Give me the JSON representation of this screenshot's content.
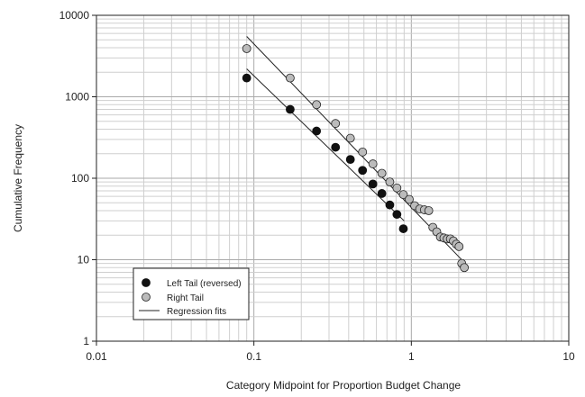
{
  "chart_data": {
    "type": "scatter",
    "title": "",
    "xlabel": "Category Midpoint for Proportion Budget Change",
    "ylabel": "Cumulative Frequency",
    "x_scale": "log",
    "y_scale": "log",
    "xlim": [
      0.01,
      10
    ],
    "ylim": [
      1,
      10000
    ],
    "x_ticks": [
      "0.01",
      "0.1",
      "1",
      "10"
    ],
    "y_ticks": [
      "1",
      "10",
      "100",
      "1000",
      "10000"
    ],
    "grid": true,
    "legend_position": "bottom-left",
    "series": [
      {
        "name": "Left Tail (reversed)",
        "color": "#111111",
        "points": [
          [
            0.09,
            1700
          ],
          [
            0.17,
            700
          ],
          [
            0.25,
            380
          ],
          [
            0.33,
            240
          ],
          [
            0.41,
            170
          ],
          [
            0.49,
            125
          ],
          [
            0.57,
            85
          ],
          [
            0.65,
            65
          ],
          [
            0.73,
            47
          ],
          [
            0.81,
            36
          ],
          [
            0.89,
            24
          ]
        ]
      },
      {
        "name": "Right Tail",
        "color": "#bbbbbb",
        "points": [
          [
            0.09,
            3900
          ],
          [
            0.17,
            1700
          ],
          [
            0.25,
            800
          ],
          [
            0.33,
            470
          ],
          [
            0.41,
            310
          ],
          [
            0.49,
            210
          ],
          [
            0.57,
            150
          ],
          [
            0.65,
            115
          ],
          [
            0.73,
            90
          ],
          [
            0.81,
            76
          ],
          [
            0.89,
            63
          ],
          [
            0.97,
            55
          ],
          [
            1.05,
            46
          ],
          [
            1.13,
            42
          ],
          [
            1.21,
            41
          ],
          [
            1.29,
            40
          ],
          [
            1.37,
            25
          ],
          [
            1.45,
            22
          ],
          [
            1.53,
            19
          ],
          [
            1.61,
            18.5
          ],
          [
            1.69,
            18
          ],
          [
            1.77,
            18
          ],
          [
            1.85,
            17
          ],
          [
            1.93,
            15.5
          ],
          [
            2.01,
            14.5
          ],
          [
            2.09,
            9
          ],
          [
            2.17,
            8
          ]
        ]
      }
    ],
    "regression_lines": [
      {
        "name": "Regression fits",
        "series": "Left Tail (reversed)",
        "x": [
          0.09,
          0.9
        ],
        "y": [
          2200,
          30
        ]
      },
      {
        "name": "Regression fits",
        "series": "Right Tail",
        "x": [
          0.09,
          2.2
        ],
        "y": [
          5500,
          9
        ]
      }
    ],
    "legend_entries": [
      "Left Tail (reversed)",
      "Right Tail",
      "Regression fits"
    ]
  }
}
